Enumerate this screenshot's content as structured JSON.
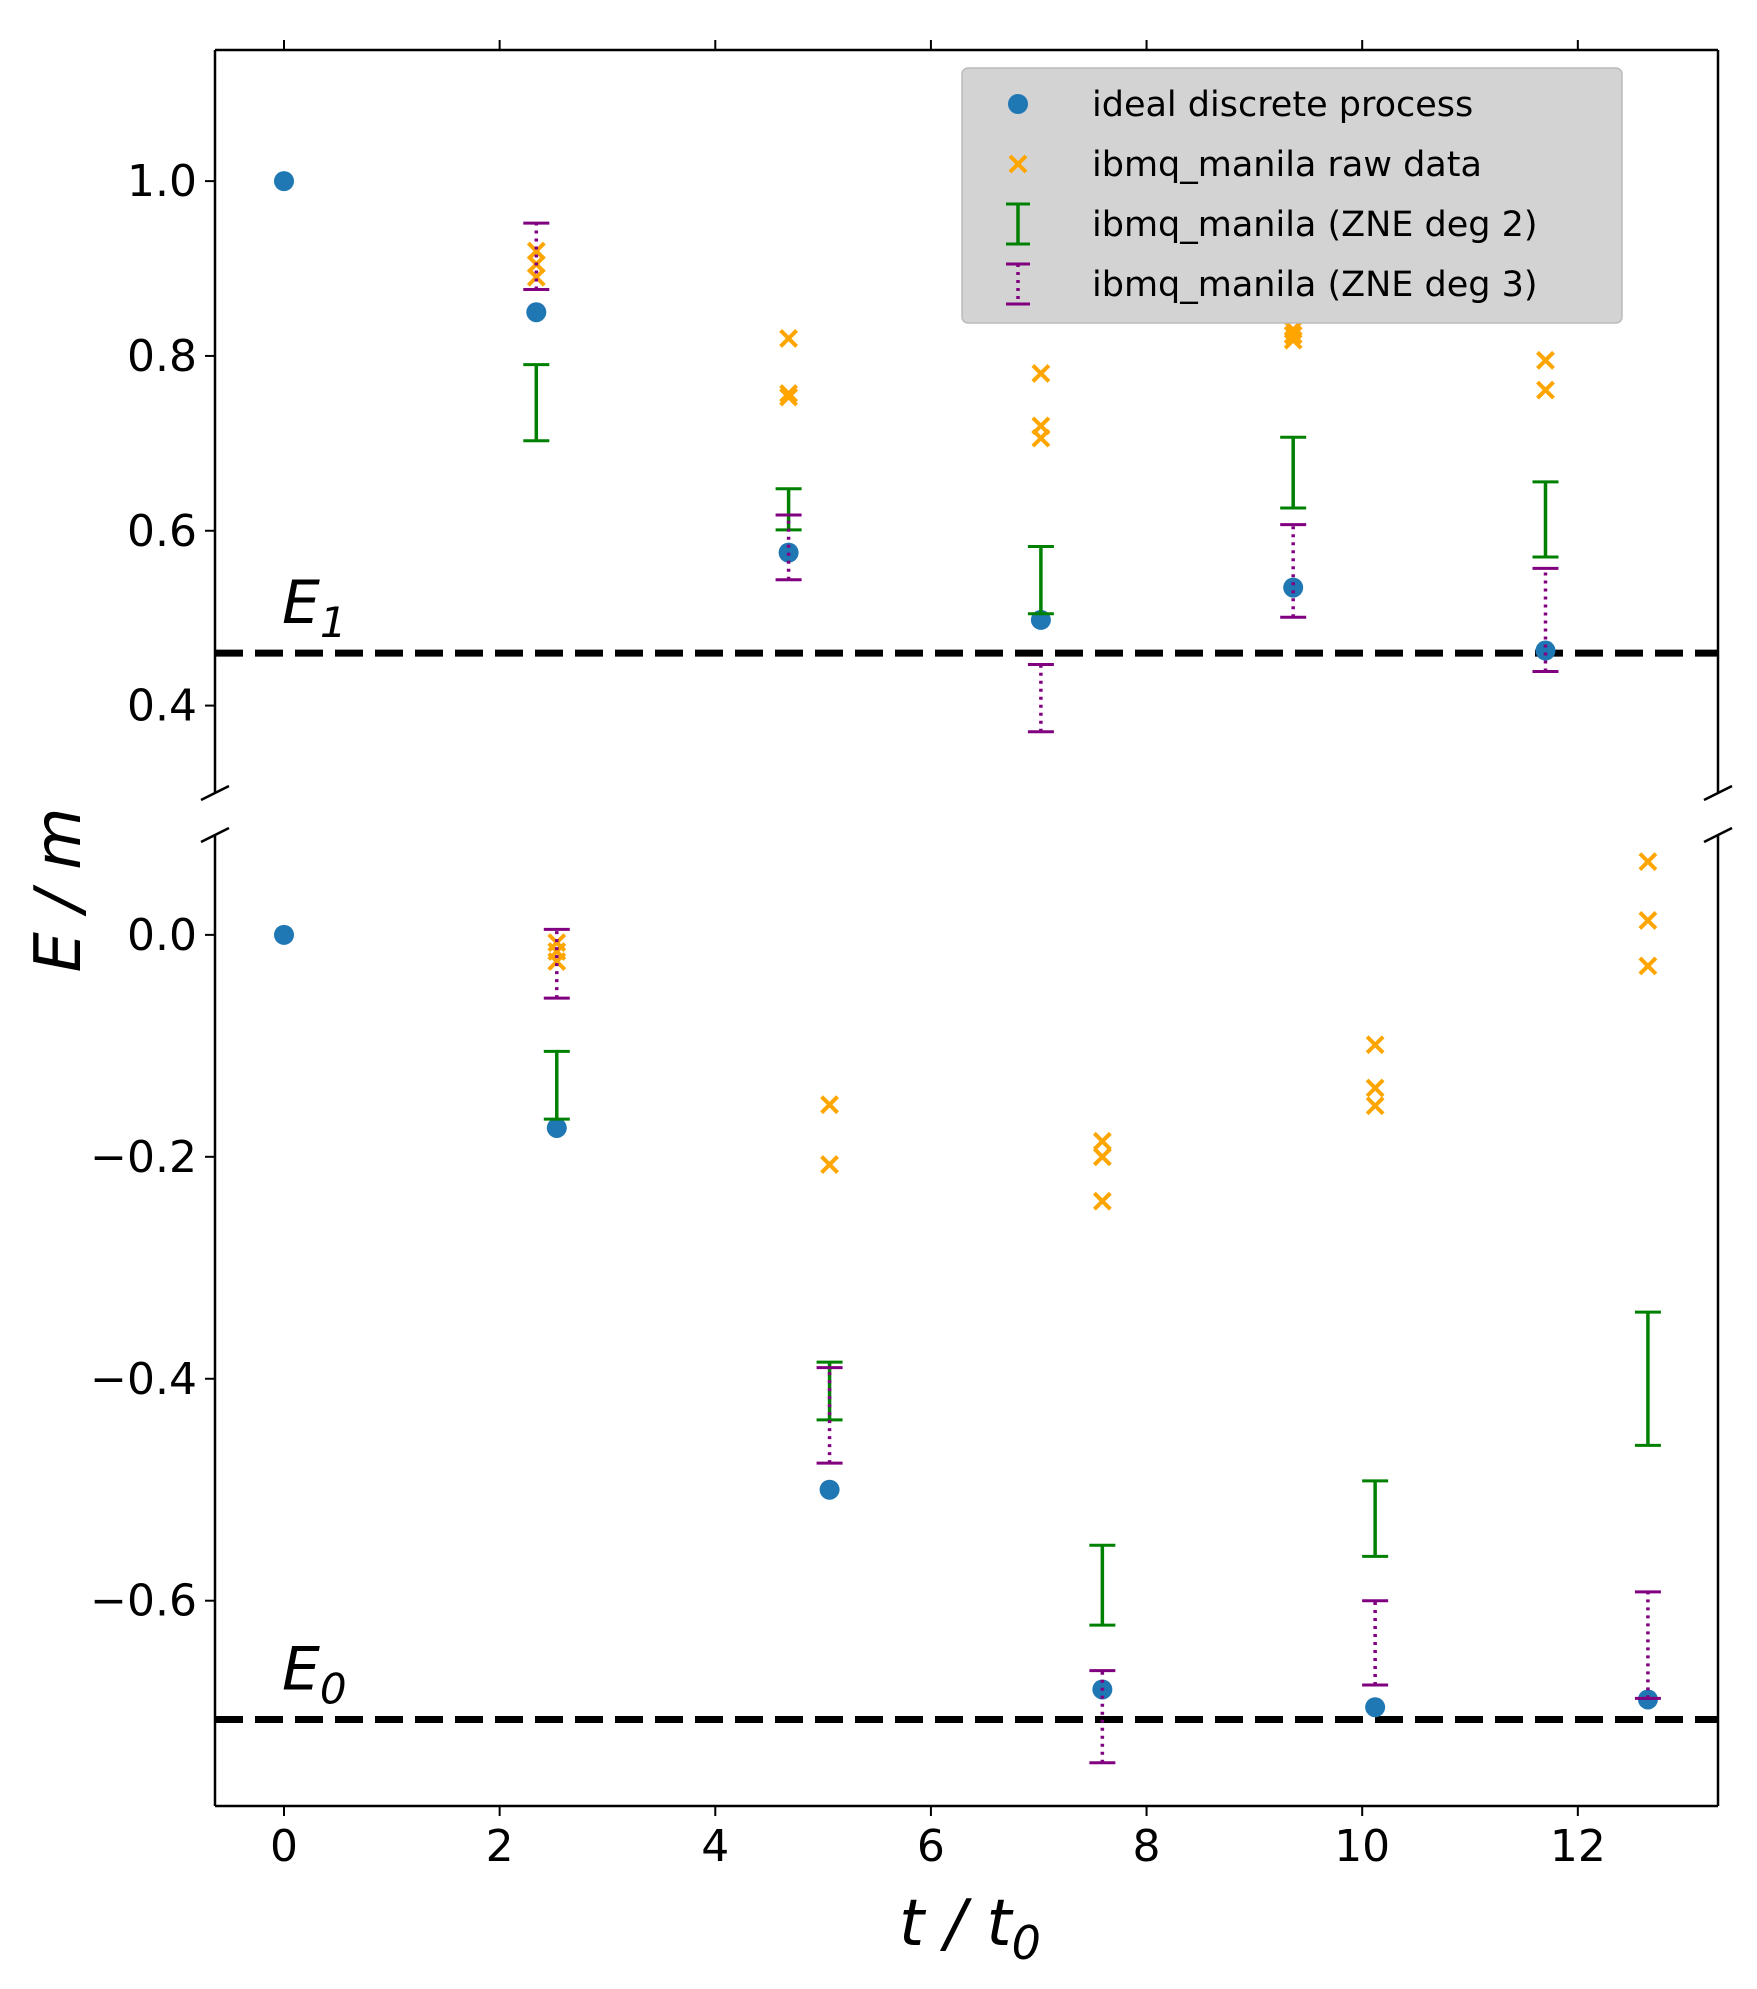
{
  "colors": {
    "ideal": "#1f77b4",
    "raw": "#ffa500",
    "zne2": "#008000",
    "zne3": "#800080",
    "legend_bg": "#d3d3d3"
  },
  "chart_data": [
    {
      "type": "scatter",
      "panel": "top",
      "ylim": [
        0.3,
        1.15
      ],
      "xlim": [
        -0.64,
        13.3
      ],
      "yticks": [
        0.4,
        0.6,
        0.8,
        1.0
      ],
      "ytick_labels": [
        "0.4",
        "0.6",
        "0.8",
        "1.0"
      ],
      "reference_line": {
        "y": 0.46,
        "label": "E",
        "sub": "1"
      },
      "legend": {
        "placement": "top-right",
        "entries": [
          {
            "key": "ideal",
            "label": "ideal discrete process"
          },
          {
            "key": "raw",
            "label": "ibmq_manila raw data"
          },
          {
            "key": "zne2",
            "label": "ibmq_manila (ZNE deg 2)"
          },
          {
            "key": "zne3",
            "label": "ibmq_manila (ZNE deg 3)"
          }
        ]
      },
      "series": [
        {
          "name": "ideal discrete process",
          "key": "ideal",
          "kind": "points",
          "x": [
            0,
            2.34,
            4.68,
            7.02,
            9.36,
            11.7
          ],
          "y": [
            1.0,
            0.85,
            0.575,
            0.498,
            0.535,
            0.463
          ]
        },
        {
          "name": "ibmq_manila raw data",
          "key": "raw",
          "kind": "crosses",
          "x": [
            2.34,
            2.34,
            2.34,
            4.68,
            4.68,
            4.68,
            7.02,
            7.02,
            7.02,
            9.36,
            9.36,
            9.36,
            11.7,
            11.7
          ],
          "y": [
            0.92,
            0.905,
            0.89,
            0.82,
            0.757,
            0.753,
            0.78,
            0.72,
            0.706,
            0.83,
            0.824,
            0.818,
            0.795,
            0.761
          ]
        },
        {
          "name": "ibmq_manila (ZNE deg 2)",
          "key": "zne2",
          "kind": "errorbar",
          "style": "solid",
          "x": [
            2.34,
            4.68,
            7.02,
            9.36,
            11.7
          ],
          "low": [
            0.703,
            0.601,
            0.505,
            0.626,
            0.57
          ],
          "high": [
            0.79,
            0.648,
            0.582,
            0.707,
            0.656
          ]
        },
        {
          "name": "ibmq_manila (ZNE deg 3)",
          "key": "zne3",
          "kind": "errorbar",
          "style": "dotted",
          "x": [
            2.34,
            4.68,
            7.02,
            9.36,
            11.7
          ],
          "low": [
            0.876,
            0.544,
            0.37,
            0.501,
            0.439
          ],
          "high": [
            0.952,
            0.618,
            0.447,
            0.607,
            0.557
          ]
        }
      ]
    },
    {
      "type": "scatter",
      "panel": "bottom",
      "ylim": [
        -0.785,
        0.09
      ],
      "xlim": [
        -0.64,
        13.3
      ],
      "yticks": [
        -0.6,
        -0.4,
        -0.2,
        0.0
      ],
      "ytick_labels": [
        "−0.6",
        "−0.4",
        "−0.2",
        "0.0"
      ],
      "xticks": [
        0,
        2,
        4,
        6,
        8,
        10,
        12
      ],
      "xtick_labels": [
        "0",
        "2",
        "4",
        "6",
        "8",
        "10",
        "12"
      ],
      "reference_line": {
        "y": -0.707,
        "label": "E",
        "sub": "0"
      },
      "series": [
        {
          "name": "ideal discrete process",
          "key": "ideal",
          "kind": "points",
          "x": [
            0,
            2.53,
            5.06,
            7.59,
            10.12,
            12.65
          ],
          "y": [
            0.0,
            -0.174,
            -0.5,
            -0.68,
            -0.696,
            -0.689
          ]
        },
        {
          "name": "ibmq_manila raw data",
          "key": "raw",
          "kind": "crosses",
          "x": [
            2.53,
            2.53,
            2.53,
            5.06,
            5.06,
            7.59,
            7.59,
            7.59,
            10.12,
            10.12,
            10.12,
            12.65,
            12.65,
            12.65
          ],
          "y": [
            -0.007,
            -0.015,
            -0.024,
            -0.153,
            -0.207,
            -0.186,
            -0.2,
            -0.24,
            -0.099,
            -0.138,
            -0.154,
            0.066,
            0.013,
            -0.028
          ]
        },
        {
          "name": "ibmq_manila (ZNE deg 2)",
          "key": "zne2",
          "kind": "errorbar",
          "style": "solid",
          "x": [
            2.53,
            5.06,
            7.59,
            10.12,
            12.65
          ],
          "low": [
            -0.166,
            -0.437,
            -0.622,
            -0.56,
            -0.46
          ],
          "high": [
            -0.105,
            -0.385,
            -0.55,
            -0.492,
            -0.34
          ]
        },
        {
          "name": "ibmq_manila (ZNE deg 3)",
          "key": "zne3",
          "kind": "errorbar",
          "style": "dotted",
          "x": [
            2.53,
            5.06,
            7.59,
            10.12,
            12.65
          ],
          "low": [
            -0.057,
            -0.476,
            -0.746,
            -0.676,
            -0.688
          ],
          "high": [
            0.005,
            -0.39,
            -0.663,
            -0.6,
            -0.592
          ]
        }
      ]
    }
  ],
  "axes": {
    "ylabel": "E / m",
    "xlabel": "t / t",
    "xlabel_sub": "0"
  }
}
